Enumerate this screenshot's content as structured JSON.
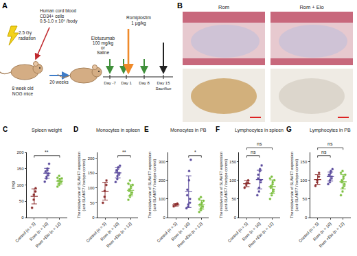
{
  "schematic": {
    "panel": "A",
    "radiation": [
      "2.5 Gy",
      "radiation"
    ],
    "cells": [
      "Human cord blood",
      "CD34+ cells",
      "0.5-1.0 x 10⁵ /body"
    ],
    "mouse": [
      "8 week old",
      "NOG mice"
    ],
    "interval": "20 weeks",
    "treatment": [
      "Elotuzumab",
      "100 mg/kg",
      "or",
      "Saline"
    ],
    "romiplostim": [
      "Romiplostim",
      "1 µg/kg"
    ],
    "days": [
      "Day -7",
      "Day 1",
      "Day 8",
      "Day 15"
    ],
    "end": "Sacrifice"
  },
  "histology": {
    "panel": "B",
    "columns": [
      "Rom",
      "Rom + Elo"
    ]
  },
  "chart_data": [
    {
      "type": "scatter",
      "panel": "C",
      "title": "Spleen weight",
      "y_label": [
        "(mg)"
      ],
      "categories": [
        "Control (n = 5)",
        "Rom (n = 10)",
        "Rom +Elo (n = 12)"
      ],
      "colors": [
        "#8c2d2d",
        "#5a4a9c",
        "#7cbf3f"
      ],
      "values": [
        [
          30,
          55,
          70,
          80,
          90
        ],
        [
          110,
          120,
          125,
          130,
          135,
          138,
          142,
          145,
          150,
          165
        ],
        [
          95,
          100,
          105,
          108,
          110,
          112,
          114,
          116,
          118,
          120,
          122,
          128
        ]
      ],
      "mean": [
        65,
        136,
        112
      ],
      "sd": [
        23,
        15,
        9
      ],
      "ylim": [
        0,
        200
      ],
      "yticks": [
        0,
        50,
        100,
        150,
        200
      ],
      "brackets": [
        {
          "from": 0,
          "to": 2,
          "label": "**"
        }
      ]
    },
    {
      "type": "scatter",
      "panel": "D",
      "title": "Monocytes in spleen",
      "y_label": [
        "The relative rate of SLAMF7 expression",
        "(anti-SLAMF7 / isotype control)"
      ],
      "categories": [
        "Control (n = 5)",
        "Rom (n = 10)",
        "Rom +Elo (n = 12)"
      ],
      "colors": [
        "#8c2d2d",
        "#5a4a9c",
        "#7cbf3f"
      ],
      "values": [
        [
          50,
          70,
          90,
          110,
          125
        ],
        [
          120,
          130,
          140,
          145,
          150,
          155,
          160,
          165,
          170,
          175
        ],
        [
          60,
          70,
          75,
          80,
          85,
          90,
          95,
          100,
          105,
          110,
          115,
          125
        ]
      ],
      "mean": [
        89,
        151,
        92
      ],
      "sd": [
        30,
        17,
        19
      ],
      "ylim": [
        0,
        220
      ],
      "yticks": [
        0,
        50,
        100,
        150,
        200
      ],
      "brackets": [
        {
          "from": 1,
          "to": 2,
          "label": "**"
        }
      ]
    },
    {
      "type": "scatter",
      "panel": "E",
      "title": "Monocytes in PB",
      "y_label": [
        "The relative rate of SLAMF7 expression",
        "(anti-SLAMF7 / isotype control)"
      ],
      "categories": [
        "Control (n = 5)",
        "Rom (n = 10)",
        "Rom +Elo (n = 12)"
      ],
      "colors": [
        "#8c2d2d",
        "#5a4a9c",
        "#7cbf3f"
      ],
      "values": [
        [
          60,
          65,
          70,
          72,
          75
        ],
        [
          50,
          60,
          70,
          80,
          100,
          120,
          150,
          200,
          250,
          310
        ],
        [
          30,
          40,
          50,
          55,
          60,
          65,
          70,
          75,
          80,
          90,
          100,
          110
        ]
      ],
      "mean": [
        68,
        139,
        69
      ],
      "sd": [
        6,
        85,
        24
      ],
      "ylim": [
        0,
        350
      ],
      "yticks": [
        0,
        100,
        200,
        300
      ],
      "brackets": [
        {
          "from": 1,
          "to": 2,
          "label": "*"
        }
      ]
    },
    {
      "type": "scatter",
      "panel": "F",
      "title": "Lymphocytes in spleen",
      "y_label": [
        "The relative rate of SLAMF7 expression",
        "(anti-SLAMF7 / isotype control)"
      ],
      "categories": [
        "Control (n = 5)",
        "Rom (n = 10)",
        "Rom +Elo (n = 12)"
      ],
      "colors": [
        "#8c2d2d",
        "#5a4a9c",
        "#7cbf3f"
      ],
      "values": [
        [
          80,
          88,
          92,
          95,
          100
        ],
        [
          60,
          70,
          80,
          95,
          100,
          105,
          115,
          125,
          130,
          140
        ],
        [
          50,
          60,
          65,
          70,
          75,
          80,
          85,
          90,
          95,
          100,
          105,
          110
        ]
      ],
      "mean": [
        91,
        102,
        83
      ],
      "sd": [
        8,
        25,
        18
      ],
      "ylim": [
        0,
        175
      ],
      "yticks": [
        0,
        50,
        100,
        150
      ],
      "brackets": [
        {
          "from": 0,
          "to": 1,
          "label": "ns"
        },
        {
          "from": 0,
          "to": 2,
          "label": "ns"
        }
      ]
    },
    {
      "type": "scatter",
      "panel": "G",
      "title": "Lymphocytes in PB",
      "y_label": [
        "The relative rate of SLAMF7 expression",
        "(anti-SLAMF7 / isotype control)"
      ],
      "categories": [
        "Control (n = 5)",
        "Rom (n = 10)",
        "Rom +Elo (n = 12)"
      ],
      "colors": [
        "#8c2d2d",
        "#5a4a9c",
        "#7cbf3f"
      ],
      "values": [
        [
          85,
          95,
          100,
          110,
          120
        ],
        [
          90,
          95,
          100,
          105,
          110,
          112,
          115,
          120,
          125,
          130
        ],
        [
          60,
          70,
          80,
          85,
          90,
          95,
          100,
          105,
          110,
          115,
          120,
          125
        ]
      ],
      "mean": [
        102,
        110,
        96
      ],
      "sd": [
        13,
        12,
        19
      ],
      "ylim": [
        0,
        175
      ],
      "yticks": [
        0,
        50,
        100,
        150
      ],
      "brackets": [
        {
          "from": 0,
          "to": 1,
          "label": "ns"
        },
        {
          "from": 0,
          "to": 2,
          "label": "ns"
        }
      ]
    }
  ]
}
